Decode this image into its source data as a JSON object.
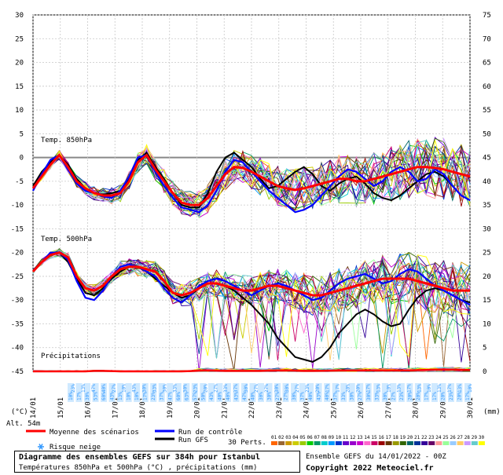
{
  "chart_data": {
    "type": "line",
    "left_axis_ticks": [
      "30",
      "25",
      "20",
      "15",
      "10",
      "5",
      "0",
      "-5",
      "-10",
      "-15",
      "-20",
      "-25",
      "-30",
      "-35",
      "-40",
      "-45"
    ],
    "right_axis_ticks": [
      "75",
      "70",
      "65",
      "60",
      "55",
      "50",
      "45",
      "40",
      "35",
      "30",
      "25",
      "20",
      "15",
      "10",
      "5",
      "0"
    ],
    "left_unit": "(°C)",
    "right_unit": "(mm)",
    "altitude_label": "Alt. 54m",
    "x_ticks": [
      "14/01",
      "15/01",
      "16/01",
      "17/01",
      "18/01",
      "19/01",
      "20/01",
      "21/01",
      "22/01",
      "23/01",
      "24/01",
      "25/01",
      "26/01",
      "27/01",
      "28/01",
      "29/01",
      "30/01"
    ],
    "panel_labels": {
      "t850": "Temp. 850hPa",
      "t500": "Temp. 500hPa",
      "precip": "Précipitations"
    },
    "snow_risk_label": "Risque neige",
    "legend": {
      "mean": "Moyenne des scénarios",
      "control": "Run de contrôle",
      "gfs": "Run GFS",
      "perts": "30 Perts.",
      "pert_numbers": [
        "01",
        "02",
        "03",
        "04",
        "05",
        "06",
        "07",
        "08",
        "09",
        "10",
        "11",
        "12",
        "13",
        "14",
        "15",
        "16",
        "17",
        "18",
        "19",
        "20",
        "21",
        "22",
        "23",
        "24",
        "25",
        "26",
        "27",
        "28",
        "29",
        "30"
      ]
    },
    "series_colors": {
      "mean": "#ff0000",
      "control": "#0000ff",
      "gfs": "#000000"
    },
    "pert_colors": [
      "#ff6600",
      "#996633",
      "#cc9900",
      "#cccc00",
      "#99cc00",
      "#00cc00",
      "#009966",
      "#00cccc",
      "#0099ff",
      "#0033cc",
      "#6600cc",
      "#9900cc",
      "#cc00cc",
      "#ff66cc",
      "#cc0066",
      "#990000",
      "#663300",
      "#999900",
      "#336600",
      "#006666",
      "#003399",
      "#330099",
      "#660066",
      "#ff9999",
      "#99ff99",
      "#99ccff",
      "#ffcc66",
      "#cc99ff",
      "#66cccc",
      "#ffff00"
    ],
    "t850_mean": [
      -6.5,
      -4,
      -1.5,
      0.5,
      -2,
      -5,
      -6.5,
      -7.5,
      -8,
      -8,
      -7.5,
      -5,
      -1,
      0.5,
      -2.5,
      -5,
      -7.5,
      -9.5,
      -10,
      -10,
      -8.5,
      -6,
      -3.5,
      -2,
      -2.2,
      -3,
      -4,
      -5,
      -6,
      -6.5,
      -6.8,
      -6.5,
      -6,
      -5.5,
      -5,
      -4.5,
      -4.5,
      -5,
      -5,
      -4.5,
      -4,
      -3.5,
      -3,
      -2.5,
      -2,
      -2,
      -2.2,
      -2.5,
      -3,
      -3.5,
      -4
    ],
    "t850_control": [
      -7,
      -3.5,
      -0.5,
      0.5,
      -2.5,
      -5.5,
      -7,
      -7.5,
      -8.2,
      -8.5,
      -7,
      -4,
      0,
      0.5,
      -3,
      -6,
      -8.5,
      -10.5,
      -11,
      -11.5,
      -10,
      -7,
      -3,
      -0.5,
      -1,
      -3,
      -5,
      -7,
      -8.5,
      -10,
      -11.5,
      -11,
      -10,
      -8,
      -6,
      -4,
      -2.5,
      -3,
      -4.5,
      -6,
      -5,
      -3,
      -2,
      -3,
      -5,
      -4.5,
      -2.5,
      -3.5,
      -6,
      -8,
      -9
    ],
    "t850_gfs": [
      -6,
      -3,
      -1,
      0.5,
      -1.5,
      -4.5,
      -6.5,
      -7.5,
      -7.8,
      -7.5,
      -7,
      -4.5,
      -0.5,
      1,
      -2,
      -4.5,
      -7.5,
      -10,
      -10.5,
      -10.5,
      -7.5,
      -3,
      0,
      1,
      -0.5,
      -2,
      -4.5,
      -6.5,
      -6,
      -4.5,
      -3,
      -2,
      -3.5,
      -6,
      -7,
      -5.5,
      -4.5,
      -4,
      -5.5,
      -7.5,
      -8.5,
      -9,
      -8,
      -6.5,
      -5,
      -3.5,
      -3,
      -4,
      -6,
      -8,
      -9
    ],
    "t500_mean": [
      -24,
      -22,
      -20.5,
      -20,
      -21,
      -25,
      -27.5,
      -28,
      -27,
      -25,
      -23.5,
      -23,
      -23,
      -23.5,
      -24,
      -26,
      -28.5,
      -29,
      -28.5,
      -27.5,
      -26.5,
      -26.5,
      -27,
      -27.5,
      -28,
      -28,
      -27.5,
      -27,
      -27,
      -27.5,
      -28,
      -28.5,
      -29,
      -29,
      -28.5,
      -28,
      -27.5,
      -27,
      -26.5,
      -26,
      -25.5,
      -25.5,
      -25.5,
      -25.5,
      -26,
      -26.5,
      -27,
      -27.5,
      -28,
      -28,
      -28
    ],
    "t500_control": [
      -24,
      -22,
      -20,
      -20,
      -21.5,
      -26,
      -29.5,
      -30,
      -28,
      -25,
      -23,
      -22.5,
      -23,
      -24,
      -25,
      -27.5,
      -29.5,
      -30.5,
      -29,
      -27,
      -26,
      -25.5,
      -26,
      -27,
      -28,
      -29,
      -28,
      -27,
      -26.5,
      -27,
      -28,
      -29,
      -30,
      -29.5,
      -28,
      -26.5,
      -25.5,
      -25,
      -24.5,
      -25.5,
      -26.5,
      -26,
      -24.5,
      -23.5,
      -24,
      -25.5,
      -27,
      -28,
      -29,
      -30,
      -31
    ],
    "t500_gfs": [
      -24,
      -22,
      -20.5,
      -20,
      -22,
      -25.5,
      -28.5,
      -29,
      -27.5,
      -25.5,
      -24,
      -23,
      -23,
      -24,
      -25.5,
      -27,
      -28.5,
      -29.5,
      -29,
      -27.5,
      -26.5,
      -26.5,
      -27,
      -28,
      -29.5,
      -31,
      -33,
      -35,
      -38,
      -40,
      -42,
      -42.5,
      -43,
      -42,
      -40,
      -37,
      -35,
      -33,
      -32,
      -33,
      -34.5,
      -35.5,
      -35,
      -32,
      -29.5,
      -28,
      -27.5,
      -28,
      -29,
      -30,
      -30.5
    ],
    "precip_mean_mm": [
      0,
      0,
      0,
      0,
      0,
      0,
      0,
      0.5,
      0.5,
      0.3,
      0,
      0,
      0,
      0,
      0,
      0,
      0,
      0,
      0.3,
      0.8,
      1,
      0.8,
      0.5,
      0.5,
      0.5,
      0.5,
      0.5,
      0.8,
      1,
      1,
      0.8,
      0.5,
      0.5,
      0.6,
      0.8,
      1,
      1,
      1,
      1,
      1,
      1,
      1,
      1,
      1,
      1.2,
      1.5,
      1.8,
      2,
      1.8,
      1.5,
      1.5
    ],
    "snow_risk_pct_row1": [
      "10%",
      "17%",
      "30%",
      "53%",
      "60%",
      "43%",
      "13%",
      "10%",
      "10%",
      "17%",
      "23%",
      "37%",
      "47%",
      "60%",
      "63%",
      "57%",
      "50%",
      "43%",
      "40%",
      "40%",
      "43%",
      "47%",
      "40%",
      "30%",
      "30%",
      "27%",
      "27%",
      "30%",
      "37%",
      "40%",
      "43%",
      "40%",
      "37%",
      "33%",
      "30%",
      "27%",
      "30%",
      "33%",
      "30%",
      "27%",
      "23%",
      "20%",
      "20%",
      "17%",
      "17%",
      "20%",
      "23%",
      "20%",
      "17%"
    ],
    "snow_risk_pct_row2": [
      "23%",
      "13%",
      "47%",
      "40%",
      "27%",
      "10%",
      "43%",
      "30%",
      "33%",
      "30%",
      "33%",
      "30%",
      "23%",
      "20%",
      "27%",
      "33%",
      "37%",
      "30%",
      "27%",
      "27%",
      "30%",
      "30%",
      "27%",
      "23%",
      "20%",
      "17%",
      "17%",
      "20%",
      "20%",
      "17%",
      "13%",
      "10%",
      "13%",
      "17%",
      "13%",
      "10%",
      "13%",
      "17%",
      "13%",
      "10%"
    ],
    "footer": {
      "title": "Diagramme des ensembles GEFS sur 384h pour Istanbul",
      "subtitle": "Températures 850hPa et 500hPa (°C) , précipitations (mm)",
      "run": "Ensemble GEFS du 14/01/2022 - 00Z",
      "copyright": "Copyright 2022 Meteociel.fr"
    }
  }
}
